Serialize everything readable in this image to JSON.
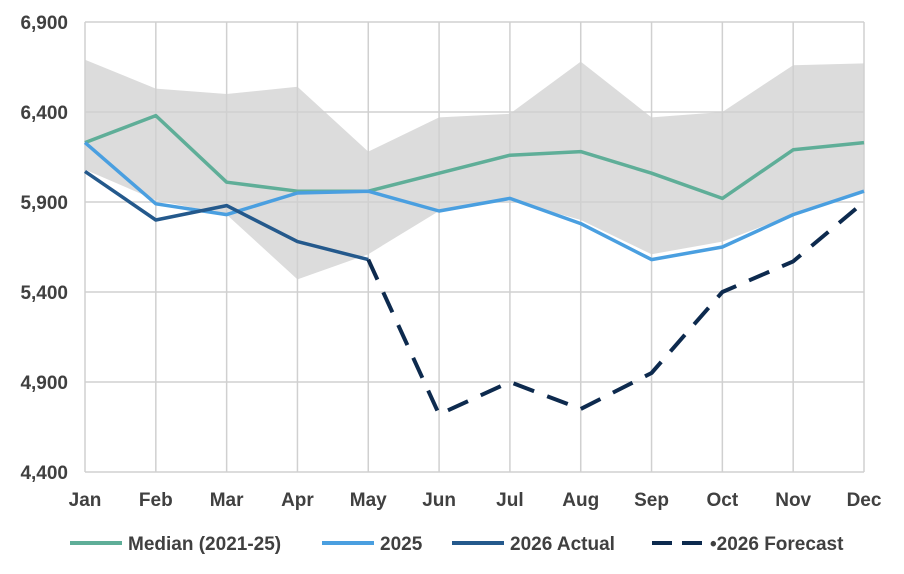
{
  "chart_data": {
    "type": "line",
    "title": "",
    "xlabel": "",
    "ylabel": "",
    "categories": [
      "Jan",
      "Feb",
      "Mar",
      "Apr",
      "May",
      "Jun",
      "Jul",
      "Aug",
      "Sep",
      "Oct",
      "Nov",
      "Dec"
    ],
    "ylim": [
      4400,
      6900
    ],
    "yticks": [
      4400,
      4900,
      5400,
      5900,
      6400,
      6900
    ],
    "ytick_labels": [
      "4,400",
      "4,900",
      "5,400",
      "5,900",
      "6,400",
      "6,900"
    ],
    "grid": true,
    "legend_position": "bottom",
    "range_band": {
      "color": "#dcdcdc",
      "upper": [
        6690,
        6530,
        6500,
        6540,
        6180,
        6370,
        6390,
        6680,
        6370,
        6400,
        6660,
        6670
      ],
      "lower": [
        6080,
        5910,
        5830,
        5470,
        5610,
        5850,
        5910,
        5800,
        5610,
        5680,
        5830,
        5960
      ]
    },
    "series": [
      {
        "name": "Median (2021-25)",
        "color": "#5fae98",
        "dash": "solid",
        "values": [
          6230,
          6380,
          6010,
          5960,
          5960,
          6060,
          6160,
          6180,
          6060,
          5920,
          6190,
          6230
        ]
      },
      {
        "name": "2025",
        "color": "#4a9fe0",
        "dash": "solid",
        "values": [
          6230,
          5890,
          5830,
          5950,
          5960,
          5850,
          5920,
          5780,
          5580,
          5650,
          5830,
          5960
        ]
      },
      {
        "name": "2026 Actual",
        "color": "#24598c",
        "dash": "solid",
        "values": [
          6070,
          5800,
          5880,
          5680,
          5580,
          null,
          null,
          null,
          null,
          null,
          null,
          null
        ]
      },
      {
        "name": "•2026 Forecast",
        "color": "#0d2a4e",
        "dash": "dashed",
        "values": [
          null,
          null,
          null,
          null,
          5580,
          4720,
          4900,
          4750,
          4950,
          5400,
          5570,
          5900
        ]
      }
    ]
  }
}
